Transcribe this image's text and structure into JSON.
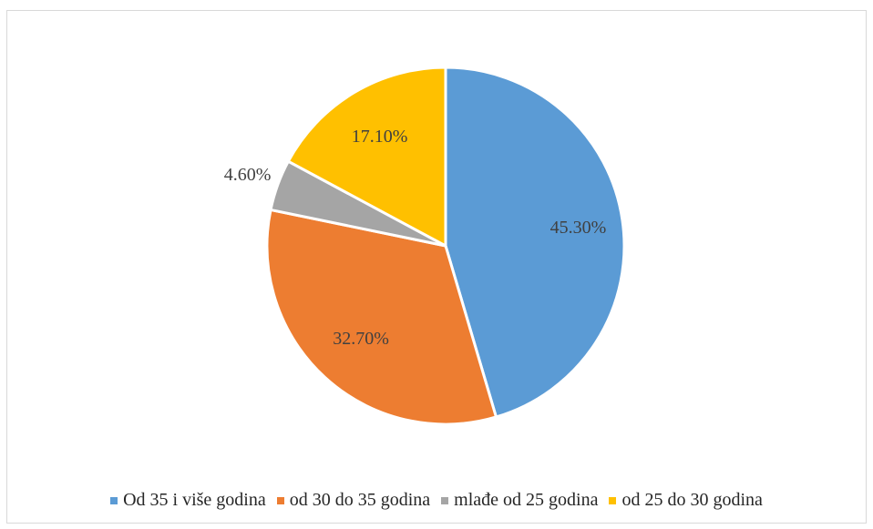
{
  "chart_data": {
    "type": "pie",
    "title": "",
    "slices": [
      {
        "name": "Od 35 i više godina",
        "value": 45.3,
        "label": "45.30%",
        "color": "#5b9bd5"
      },
      {
        "name": "od 30 do 35 godina",
        "value": 32.7,
        "label": "32.70%",
        "color": "#ed7d31"
      },
      {
        "name": "mlađe od 25 godina",
        "value": 4.6,
        "label": "4.60%",
        "color": "#a5a5a5"
      },
      {
        "name": "od 25 do 30 godina",
        "value": 17.1,
        "label": "17.10%",
        "color": "#ffc000"
      }
    ],
    "legend_position": "bottom"
  }
}
